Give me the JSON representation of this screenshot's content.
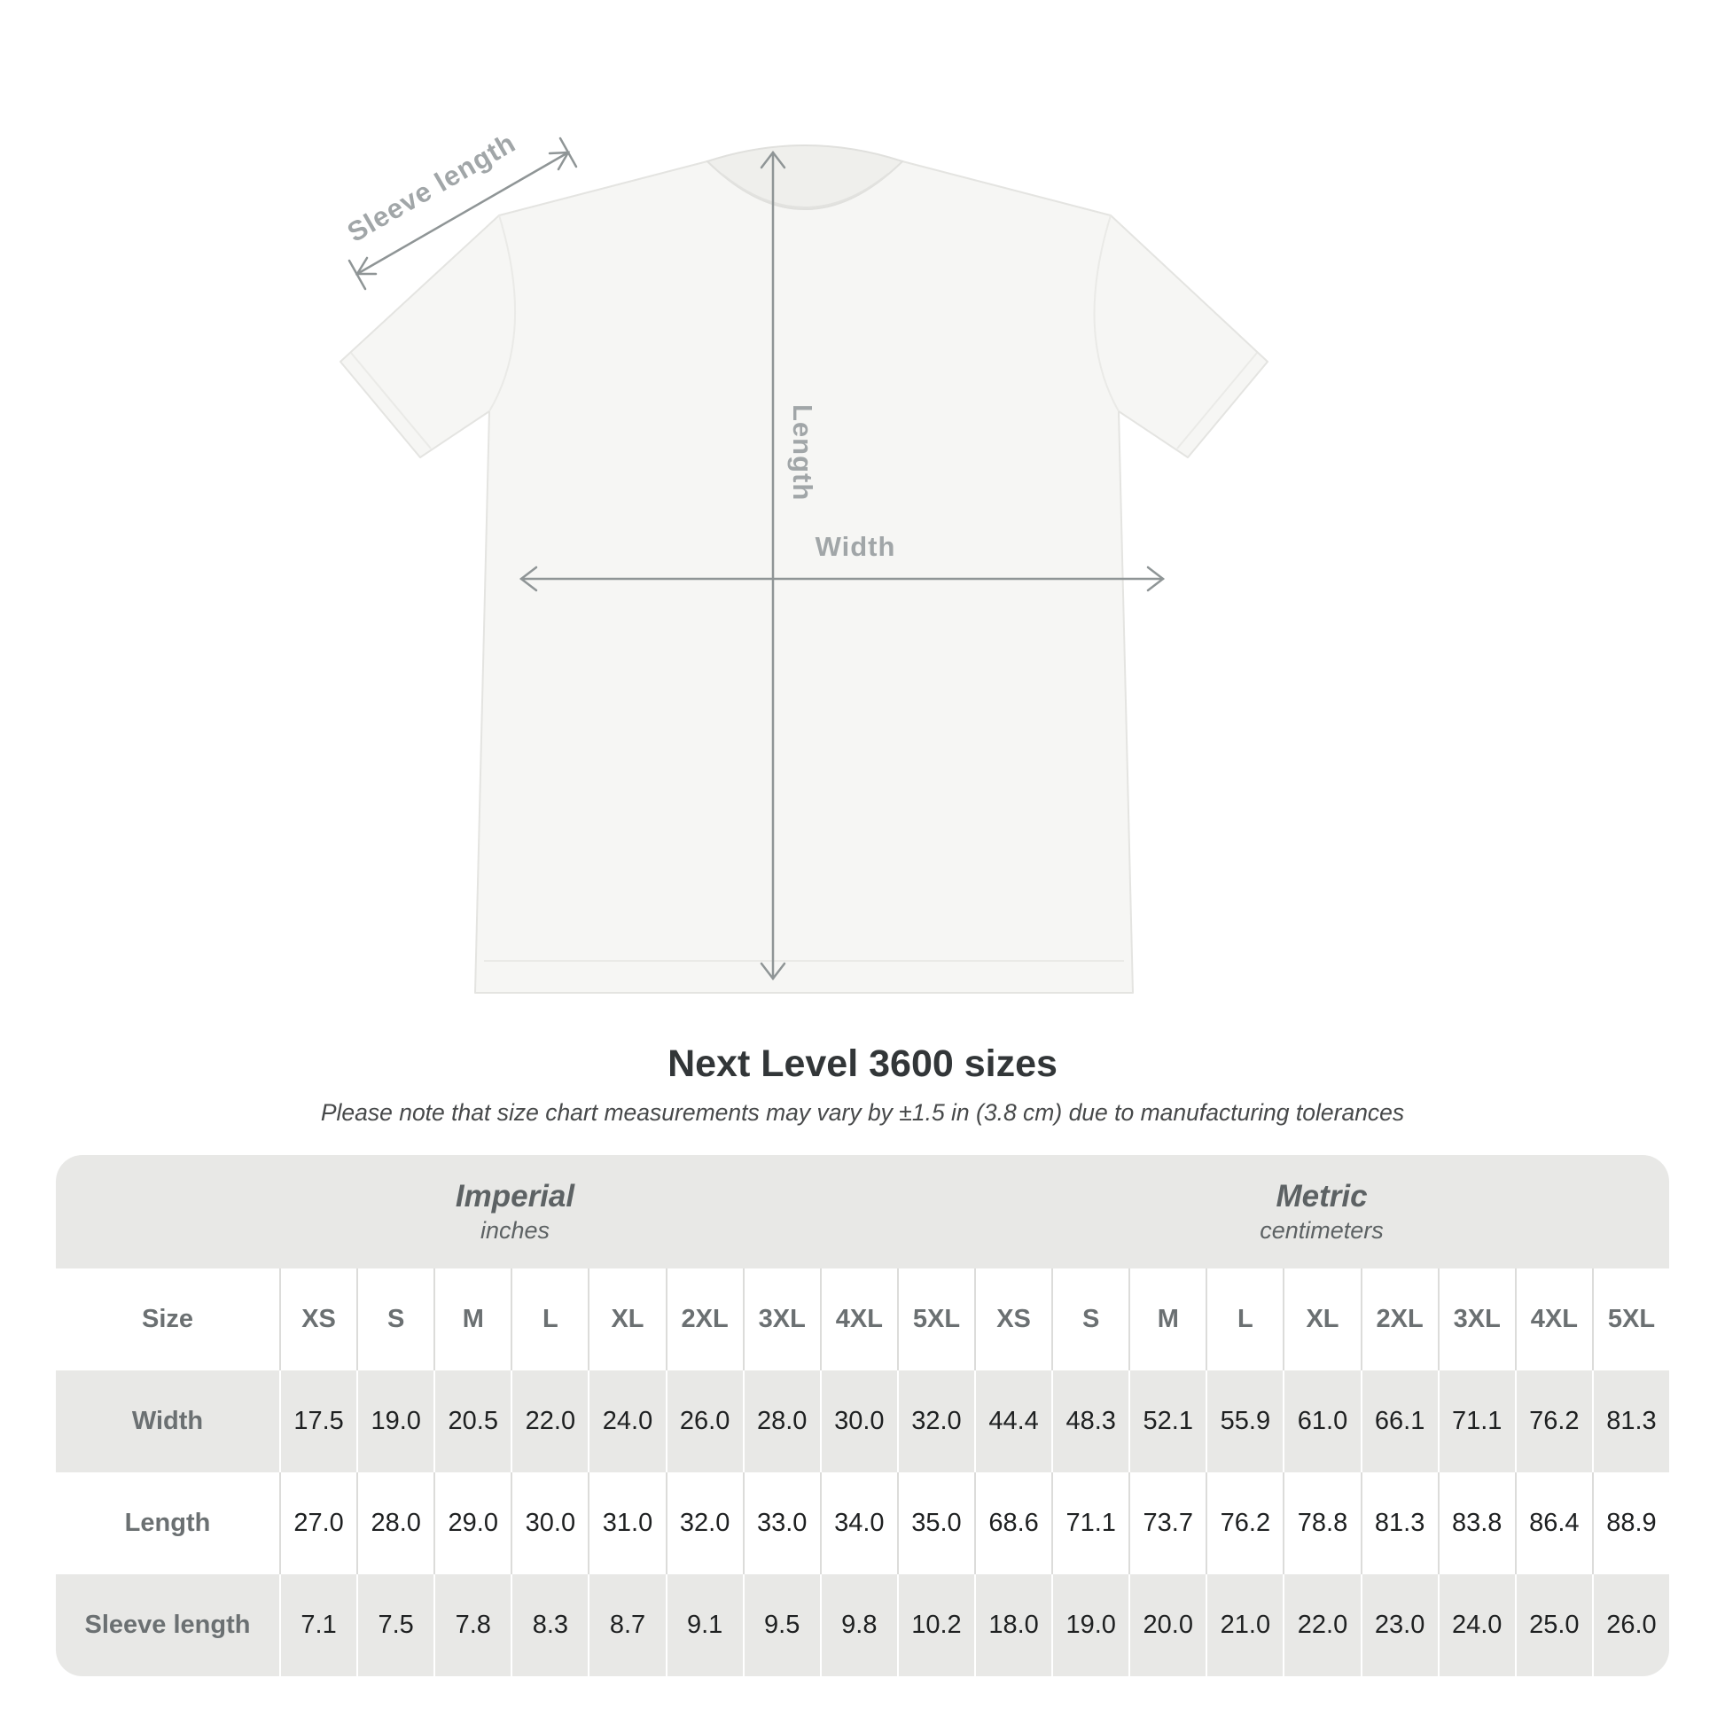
{
  "diagram": {
    "labels": {
      "sleeve_length": "Sleeve length",
      "length": "Length",
      "width": "Width"
    },
    "colors": {
      "shirt_fill": "#f6f6f4",
      "shirt_outline": "#e4e4e1",
      "arrow": "#8f9596",
      "label_text": "#a1a6a8"
    }
  },
  "heading": {
    "title": "Next Level 3600 sizes",
    "note": "Please note that size chart measurements may vary by ±1.5 in (3.8 cm) due to manufacturing tolerances"
  },
  "chart_data": {
    "type": "table",
    "title": "Next Level 3600 sizes",
    "note": "Please note that size chart measurements may vary by ±1.5 in (3.8 cm) due to manufacturing tolerances",
    "unit_groups": [
      {
        "label": "Imperial",
        "sublabel": "inches"
      },
      {
        "label": "Metric",
        "sublabel": "centimeters"
      }
    ],
    "corner_label": "Size",
    "sizes": [
      "XS",
      "S",
      "M",
      "L",
      "XL",
      "2XL",
      "3XL",
      "4XL",
      "5XL"
    ],
    "rows": [
      {
        "label": "Width",
        "imperial": [
          17.5,
          19.0,
          20.5,
          22.0,
          24.0,
          26.0,
          28.0,
          30.0,
          32.0
        ],
        "metric": [
          44.4,
          48.3,
          52.1,
          55.9,
          61.0,
          66.1,
          71.1,
          76.2,
          81.3
        ]
      },
      {
        "label": "Length",
        "imperial": [
          27.0,
          28.0,
          29.0,
          30.0,
          31.0,
          32.0,
          33.0,
          34.0,
          35.0
        ],
        "metric": [
          68.6,
          71.1,
          73.7,
          76.2,
          78.8,
          81.3,
          83.8,
          86.4,
          88.9
        ]
      },
      {
        "label": "Sleeve length",
        "imperial": [
          7.1,
          7.5,
          7.8,
          8.3,
          8.7,
          9.1,
          9.5,
          9.8,
          10.2
        ],
        "metric": [
          18.0,
          19.0,
          20.0,
          21.0,
          22.0,
          23.0,
          24.0,
          25.0,
          26.0
        ]
      }
    ],
    "table_colors": {
      "stripe_gray": "#e8e8e6",
      "value_text": "#1e2021",
      "header_text": "#6b7072"
    }
  }
}
